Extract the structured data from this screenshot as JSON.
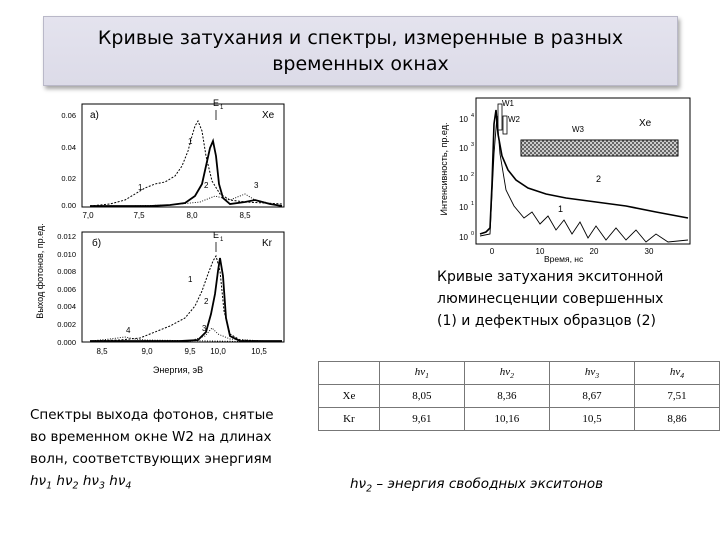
{
  "slide": {
    "title_line1": "Кривые затухания и спектры, измеренные в разных",
    "title_line2": "временных окнах"
  },
  "spectra_chart": {
    "ylabel": "Выход фотонов, пр.ед.",
    "xlabel": "Энергия, эВ",
    "top": {
      "panel_label": "а)",
      "element": "Xe",
      "peak_label": "E",
      "peak_sub": "1",
      "yticks": [
        "0.06",
        "0.04",
        "0.02",
        "0.00"
      ],
      "xticks": [
        "7,0",
        "7,5",
        "8,0",
        "8,5"
      ],
      "curve_labels": [
        "1",
        "2",
        "3"
      ]
    },
    "bottom": {
      "panel_label": "б)",
      "element": "Kr",
      "peak_label": "E",
      "peak_sub": "1",
      "yticks": [
        "0.012",
        "0.010",
        "0.008",
        "0.006",
        "0.004",
        "0.002",
        "0.000"
      ],
      "xticks": [
        "8,5",
        "9,0",
        "9,5",
        "10,0",
        "10,5"
      ],
      "curve_labels": [
        "1",
        "2",
        "3",
        "4"
      ]
    }
  },
  "decay_chart": {
    "ylabel": "Интенсивность, пр.ед.",
    "xlabel": "Время, нс",
    "element": "Xe",
    "window_labels": [
      "W1",
      "W2",
      "W3"
    ],
    "curve_labels": [
      "2",
      "1"
    ],
    "ytick_base": "10",
    "ytick_exponents": [
      "4",
      "3",
      "2",
      "1",
      "0"
    ],
    "xticks": [
      "0",
      "10",
      "20",
      "30"
    ]
  },
  "captions": {
    "decay": [
      "Кривые затухания экситонной",
      "люминесценции совершенных",
      "(1) и дефектных образцов (2)"
    ],
    "spectra": [
      "Спектры выхода фотонов, снятые",
      "во временном окне W2 на длинах",
      "волн, соответствующих энергиям"
    ],
    "spectra_hv": [
      {
        "base": "hν",
        "sub": "1"
      },
      {
        "base": "hν",
        "sub": "2"
      },
      {
        "base": "hν",
        "sub": "3"
      },
      {
        "base": "hν",
        "sub": "4"
      }
    ],
    "note_base": "hν",
    "note_sub": "2",
    "note_rest": " – энергия свободных экситонов"
  },
  "energy_table": {
    "headers": [
      {
        "base": "hν",
        "sub": "1"
      },
      {
        "base": "hν",
        "sub": "2"
      },
      {
        "base": "hν",
        "sub": "3"
      },
      {
        "base": "hν",
        "sub": "4"
      }
    ],
    "rows": [
      {
        "element": "Xe",
        "values": [
          "8,05",
          "8,36",
          "8,67",
          "7,51"
        ]
      },
      {
        "element": "Kr",
        "values": [
          "9,61",
          "10,16",
          "10,5",
          "8,86"
        ]
      }
    ]
  }
}
